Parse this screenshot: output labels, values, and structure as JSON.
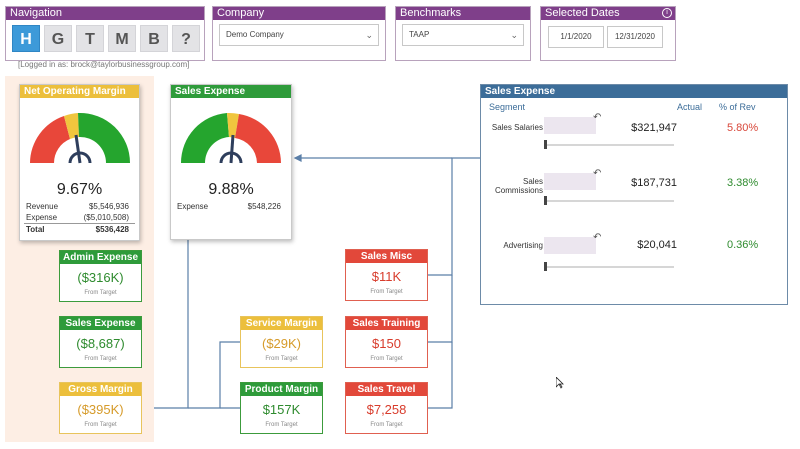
{
  "navigation": {
    "title": "Navigation",
    "buttons": [
      "H",
      "G",
      "T",
      "M",
      "B",
      "?"
    ]
  },
  "company": {
    "title": "Company",
    "value": "Demo Company"
  },
  "benchmarks": {
    "title": "Benchmarks",
    "value": "TAAP"
  },
  "dates": {
    "title": "Selected Dates",
    "start": "1/1/2020",
    "end": "12/31/2020"
  },
  "logged_in": "[Logged in as: brock@taylorbusinessgroup.com]",
  "net_operating_margin": {
    "title": "Net Operating Margin",
    "percent": "9.67%",
    "rows": [
      {
        "label": "Revenue",
        "value": "$5,546,936"
      },
      {
        "label": "Expense",
        "value": "($5,010,508)"
      },
      {
        "label": "Total",
        "value": "$536,428"
      }
    ],
    "gauge_level": 0.52
  },
  "sales_expense_gauge": {
    "title": "Sales Expense",
    "percent": "9.88%",
    "rows": [
      {
        "label": "Expense",
        "value": "$548,226"
      }
    ],
    "gauge_level": 0.5
  },
  "kpis": {
    "admin_expense": {
      "title": "Admin Expense",
      "value": "($316K)",
      "sub": "From Target"
    },
    "sales_expense": {
      "title": "Sales Expense",
      "value": "($8,687)",
      "sub": "From Target"
    },
    "gross_margin": {
      "title": "Gross Margin",
      "value": "($395K)",
      "sub": "From Target"
    },
    "service_margin": {
      "title": "Service Margin",
      "value": "($29K)",
      "sub": "From Target"
    },
    "product_margin": {
      "title": "Product Margin",
      "value": "$157K",
      "sub": "From Target"
    },
    "sales_misc": {
      "title": "Sales Misc",
      "value": "$11K",
      "sub": "From Target"
    },
    "sales_training": {
      "title": "Sales Training",
      "value": "$150",
      "sub": "From Target"
    },
    "sales_travel": {
      "title": "Sales Travel",
      "value": "$7,258",
      "sub": "From Target"
    }
  },
  "sales_table": {
    "title": "Sales Expense",
    "headers": {
      "segment": "Segment",
      "actual": "Actual",
      "pct": "% of Rev"
    },
    "rows": [
      {
        "segment": "Sales Salaries",
        "actual": "$321,947",
        "pct": "5.80%",
        "pct_status": "red"
      },
      {
        "segment": "Sales Commissions",
        "segment_l1": "Sales",
        "segment_l2": "Commissions",
        "actual": "$187,731",
        "pct": "3.38%",
        "pct_status": "green"
      },
      {
        "segment": "Advertising",
        "actual": "$20,041",
        "pct": "0.36%",
        "pct_status": "green"
      }
    ]
  },
  "colors": {
    "purple_header": "#7f3f8a",
    "nav_active": "#3d9ad9",
    "green": "#2e9b3a",
    "yellow": "#ecbf3c",
    "red": "#e2483a",
    "table_blue": "#3c6d99"
  }
}
